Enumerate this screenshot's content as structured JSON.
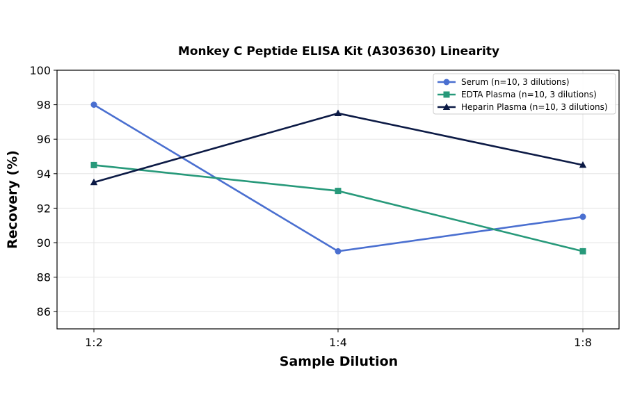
{
  "chart_data": {
    "type": "line",
    "title": "Monkey C Peptide ELISA Kit (A303630) Linearity",
    "xlabel": "Sample Dilution",
    "ylabel": "Recovery (%)",
    "categories": [
      "1:2",
      "1:4",
      "1:8"
    ],
    "ylim": [
      85,
      100
    ],
    "yticks": [
      86,
      88,
      90,
      92,
      94,
      96,
      98,
      100
    ],
    "grid": true,
    "legend_position": "top-right",
    "series": [
      {
        "name": "Serum (n=10, 3 dilutions)",
        "values": [
          98.0,
          89.5,
          91.5
        ],
        "color": "#4a6fd0",
        "marker": "circle"
      },
      {
        "name": "EDTA Plasma (n=10, 3 dilutions)",
        "values": [
          94.5,
          93.0,
          89.5
        ],
        "color": "#27997a",
        "marker": "square"
      },
      {
        "name": "Heparin Plasma (n=10, 3 dilutions)",
        "values": [
          93.5,
          97.5,
          94.5
        ],
        "color": "#0c1a45",
        "marker": "triangle"
      }
    ]
  }
}
